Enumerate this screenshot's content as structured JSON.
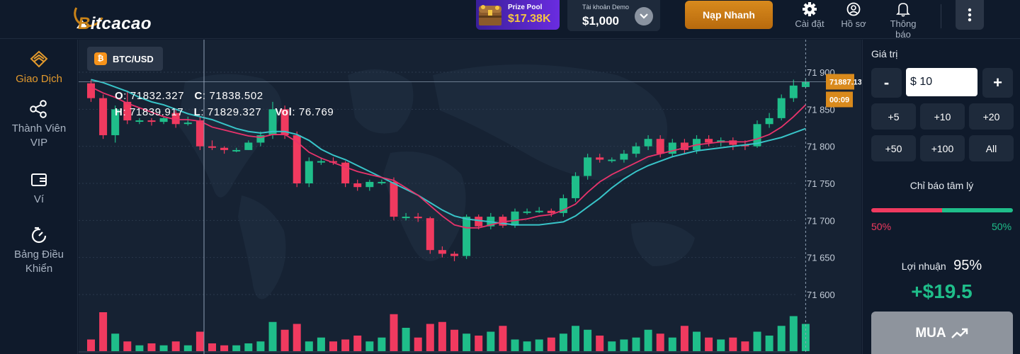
{
  "brand": {
    "name": "itcacao"
  },
  "prize_pool": {
    "label": "Prize Pool",
    "value": "$17.38K"
  },
  "account": {
    "label": "Tài khoản Demo",
    "balance": "$1,000"
  },
  "deposit_button": "Nạp Nhanh",
  "top_nav": [
    {
      "label": "Cài đặt",
      "icon": "gear-icon"
    },
    {
      "label": "Hồ sơ",
      "icon": "user-icon"
    },
    {
      "label": "Thông báo",
      "icon": "bell-icon"
    }
  ],
  "sidebar": [
    {
      "label": "Giao Dịch",
      "icon": "trade-icon",
      "active": true
    },
    {
      "label": "Thành Viên VIP",
      "icon": "share-icon"
    },
    {
      "label": "Ví",
      "icon": "wallet-icon"
    },
    {
      "label": "Bảng Điều Khiển",
      "icon": "dashboard-icon"
    }
  ],
  "pair": "BTC/USD",
  "ohlc": {
    "o_label": "O",
    "o": "71832.327",
    "c_label": "C",
    "c": "71838.502",
    "h_label": "H",
    "h": "71839.917",
    "l_label": "L",
    "l": "71829.327",
    "vol_label": "Vol",
    "vol": "76.769"
  },
  "chart_data": {
    "type": "candlestick",
    "ylim": [
      71570,
      71930
    ],
    "y_ticks": [
      71900,
      71850,
      71800,
      71750,
      71700,
      71650,
      71600
    ],
    "y_tick_labels": [
      "71 900",
      "71 850",
      "71 800",
      "71 750",
      "71 700",
      "71 650",
      "71 600"
    ],
    "current_price": "71887.135",
    "countdown": "00:09",
    "candles": [
      [
        71885,
        71865,
        71890,
        71860
      ],
      [
        71865,
        71815,
        71870,
        71810
      ],
      [
        71815,
        71850,
        71855,
        71805
      ],
      [
        71860,
        71835,
        71875,
        71830
      ],
      [
        71835,
        71835,
        71838,
        71830
      ],
      [
        71835,
        71833,
        71838,
        71828
      ],
      [
        71833,
        71838,
        71840,
        71830
      ],
      [
        71845,
        71830,
        71850,
        71825
      ],
      [
        71832,
        71832,
        71840,
        71828
      ],
      [
        71835,
        71800,
        71840,
        71795
      ],
      [
        71800,
        71798,
        71808,
        71795
      ],
      [
        71798,
        71795,
        71800,
        71790
      ],
      [
        71795,
        71795,
        71798,
        71792
      ],
      [
        71795,
        71805,
        71808,
        71795
      ],
      [
        71805,
        71815,
        71820,
        71800
      ],
      [
        71815,
        71850,
        71860,
        71810
      ],
      [
        71850,
        71815,
        71855,
        71810
      ],
      [
        71815,
        71750,
        71820,
        71745
      ],
      [
        71750,
        71780,
        71785,
        71745
      ],
      [
        71780,
        71780,
        71785,
        71775
      ],
      [
        71780,
        71778,
        71785,
        71775
      ],
      [
        71778,
        71750,
        71780,
        71745
      ],
      [
        71750,
        71745,
        71755,
        71740
      ],
      [
        71745,
        71752,
        71755,
        71740
      ],
      [
        71752,
        71752,
        71755,
        71748
      ],
      [
        71752,
        71705,
        71758,
        71700
      ],
      [
        71705,
        71705,
        71710,
        71700
      ],
      [
        71705,
        71703,
        71710,
        71698
      ],
      [
        71703,
        71660,
        71705,
        71655
      ],
      [
        71660,
        71655,
        71665,
        71650
      ],
      [
        71655,
        71652,
        71658,
        71645
      ],
      [
        71652,
        71705,
        71708,
        71648
      ],
      [
        71705,
        71692,
        71708,
        71688
      ],
      [
        71692,
        71705,
        71710,
        71688
      ],
      [
        71705,
        71693,
        71708,
        71690
      ],
      [
        71693,
        71712,
        71716,
        71690
      ],
      [
        71712,
        71712,
        71716,
        71708
      ],
      [
        71712,
        71713,
        71718,
        71710
      ],
      [
        71713,
        71710,
        71716,
        71705
      ],
      [
        71710,
        71730,
        71735,
        71705
      ],
      [
        71730,
        71760,
        71765,
        71725
      ],
      [
        71760,
        71785,
        71790,
        71755
      ],
      [
        71785,
        71782,
        71790,
        71778
      ],
      [
        71782,
        71782,
        71785,
        71778
      ],
      [
        71782,
        71790,
        71795,
        71778
      ],
      [
        71790,
        71800,
        71805,
        71785
      ],
      [
        71800,
        71810,
        71815,
        71795
      ],
      [
        71810,
        71790,
        71815,
        71785
      ],
      [
        71790,
        71805,
        71810,
        71785
      ],
      [
        71805,
        71795,
        71810,
        71790
      ],
      [
        71795,
        71810,
        71815,
        71790
      ],
      [
        71810,
        71805,
        71815,
        71800
      ],
      [
        71805,
        71808,
        71812,
        71800
      ],
      [
        71808,
        71802,
        71812,
        71795
      ],
      [
        71802,
        71800,
        71808,
        71795
      ],
      [
        71800,
        71830,
        71835,
        71798
      ],
      [
        71830,
        71838,
        71845,
        71825
      ],
      [
        71838,
        71865,
        71870,
        71835
      ],
      [
        71865,
        71882,
        71890,
        71860
      ],
      [
        71880,
        71887,
        71892,
        71878
      ]
    ],
    "volume": [
      12,
      40,
      18,
      10,
      6,
      8,
      6,
      10,
      6,
      20,
      8,
      6,
      6,
      8,
      10,
      30,
      22,
      28,
      10,
      14,
      10,
      12,
      16,
      10,
      14,
      38,
      24,
      14,
      28,
      30,
      22,
      18,
      16,
      20,
      26,
      12,
      10,
      12,
      14,
      18,
      26,
      22,
      16,
      10,
      12,
      14,
      22,
      18,
      14,
      26,
      20,
      14,
      12,
      14,
      10,
      20,
      16,
      26,
      36,
      28
    ],
    "ma_fast": [
      71880,
      71872,
      71866,
      71858,
      71852,
      71846,
      71840,
      71836,
      71836,
      71834,
      71826,
      71822,
      71818,
      71814,
      71812,
      71816,
      71816,
      71806,
      71792,
      71784,
      71778,
      71772,
      71766,
      71762,
      71758,
      71754,
      71744,
      71734,
      71720,
      71706,
      71694,
      71690,
      71690,
      71694,
      71698,
      71700,
      71702,
      71706,
      71708,
      71714,
      71722,
      71738,
      71752,
      71762,
      71770,
      71778,
      71786,
      71790,
      71794,
      71798,
      71802,
      71804,
      71806,
      71806,
      71806,
      71810,
      71816,
      71826,
      71840,
      71856
    ],
    "ma_slow": [
      71890,
      71886,
      71880,
      71874,
      71866,
      71860,
      71856,
      71850,
      71844,
      71840,
      71836,
      71830,
      71824,
      71820,
      71818,
      71820,
      71820,
      71816,
      71808,
      71796,
      71788,
      71782,
      71774,
      71766,
      71758,
      71750,
      71742,
      71734,
      71724,
      71714,
      71706,
      71702,
      71700,
      71698,
      71696,
      71694,
      71694,
      71694,
      71696,
      71698,
      71706,
      71718,
      71730,
      71744,
      71756,
      71766,
      71774,
      71780,
      71786,
      71790,
      71794,
      71796,
      71798,
      71800,
      71802,
      71804,
      71808,
      71812,
      71818,
      71824
    ]
  },
  "panel": {
    "value_label": "Giá trị",
    "minus": "-",
    "plus": "+",
    "amount": "$ 10",
    "quick_buttons": [
      "+5",
      "+10",
      "+20",
      "+50",
      "+100",
      "All"
    ],
    "sentiment_label": "Chỉ báo tâm lý",
    "sentiment_left": "50%",
    "sentiment_right": "50%",
    "profit_label": "Lợi nhuận",
    "profit_percent": "95%",
    "profit_value": "+$19.5",
    "buy_label": "MUA"
  },
  "colors": {
    "up": "#1fbe8a",
    "down": "#f03a5f",
    "accent": "#e39a2d",
    "ma_fast": "#e8336b",
    "ma_slow": "#38c4c8"
  }
}
